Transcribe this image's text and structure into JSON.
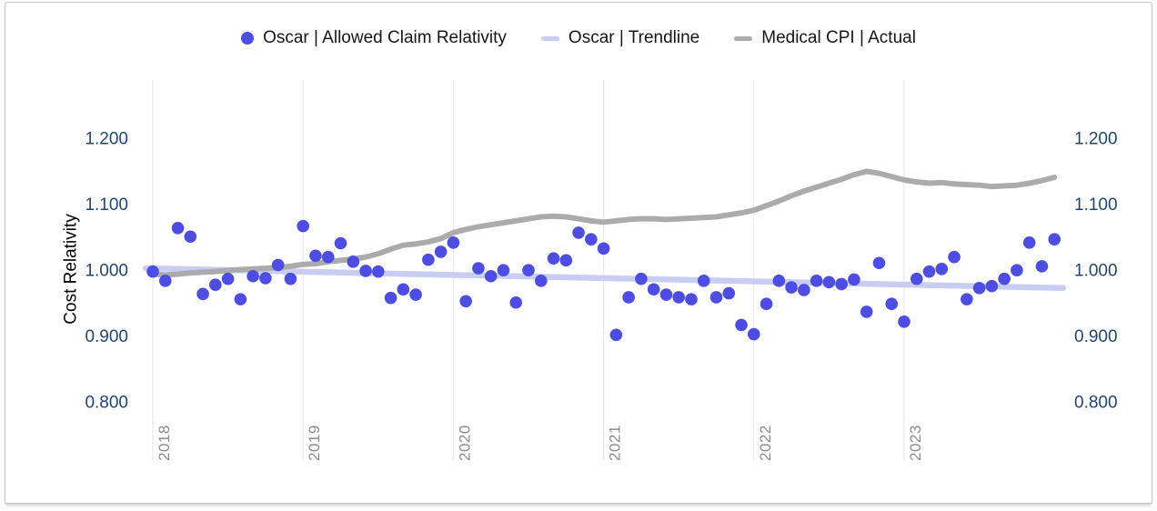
{
  "legend": {
    "position": "top-center",
    "items": [
      {
        "label": "Oscar | Allowed Claim Relativity",
        "marker": "dot",
        "color": "#4d4de2"
      },
      {
        "label": "Oscar | Trendline",
        "marker": "dash",
        "color": "#c9cdf4"
      },
      {
        "label": "Medical CPI | Actual",
        "marker": "dash",
        "color": "#ababab"
      }
    ]
  },
  "y_axis": {
    "title": "Cost Relativity",
    "tick_labels": [
      "1.200",
      "1.100",
      "1.000",
      "0.900",
      "0.800"
    ],
    "tick_values": [
      1.2,
      1.1,
      1.0,
      0.9,
      0.8
    ],
    "label_color": "#24466e",
    "shown_on": "both sides"
  },
  "x_axis": {
    "tick_labels": [
      "2018",
      "2019",
      "2020",
      "2021",
      "2022",
      "2023"
    ],
    "label_color": "#8b8b8b"
  },
  "chart_data": {
    "type": "scatter",
    "title": "",
    "xlabel": "",
    "ylabel": "Cost Relativity",
    "x_unit": "month",
    "x_start": "2018-01",
    "x_end": "2024-01",
    "x_year_ticks": [
      "2018",
      "2019",
      "2020",
      "2021",
      "2022",
      "2023"
    ],
    "ylim": [
      0.75,
      1.25
    ],
    "grid": "vertical-only",
    "legend_position": "top-center",
    "series": [
      {
        "name": "Oscar | Allowed Claim Relativity",
        "type": "scatter",
        "color": "#4d4de2",
        "values": [
          0.997,
          0.983,
          1.063,
          1.05,
          0.963,
          0.977,
          0.986,
          0.955,
          0.99,
          0.987,
          1.007,
          0.986,
          1.066,
          1.021,
          1.019,
          1.04,
          1.012,
          0.998,
          0.997,
          0.957,
          0.97,
          0.962,
          1.015,
          1.027,
          1.041,
          0.952,
          1.002,
          0.99,
          0.999,
          0.95,
          0.999,
          0.983,
          1.017,
          1.014,
          1.056,
          1.046,
          1.032,
          0.901,
          0.958,
          0.986,
          0.97,
          0.962,
          0.958,
          0.955,
          0.983,
          0.958,
          0.964,
          0.916,
          0.902,
          0.948,
          0.983,
          0.973,
          0.969,
          0.983,
          0.981,
          0.978,
          0.985,
          0.936,
          1.01,
          0.948,
          0.921,
          0.986,
          0.997,
          1.001,
          1.019,
          0.955,
          0.972,
          0.975,
          0.986,
          0.999,
          1.041,
          1.005,
          1.046
        ]
      },
      {
        "name": "Oscar | Trendline",
        "type": "line",
        "color": "#c9cdf4",
        "trend": {
          "start": 1.002,
          "end": 0.972
        }
      },
      {
        "name": "Medical CPI | Actual",
        "type": "line",
        "color": "#ababab",
        "values": [
          0.993,
          0.992,
          0.993,
          0.995,
          0.996,
          0.997,
          0.999,
          1.0,
          1.001,
          1.002,
          1.003,
          1.005,
          1.008,
          1.009,
          1.012,
          1.014,
          1.016,
          1.019,
          1.024,
          1.031,
          1.037,
          1.039,
          1.042,
          1.047,
          1.056,
          1.061,
          1.065,
          1.068,
          1.071,
          1.074,
          1.077,
          1.08,
          1.081,
          1.08,
          1.077,
          1.074,
          1.072,
          1.074,
          1.076,
          1.077,
          1.077,
          1.076,
          1.077,
          1.078,
          1.079,
          1.08,
          1.083,
          1.086,
          1.09,
          1.097,
          1.104,
          1.112,
          1.119,
          1.125,
          1.131,
          1.137,
          1.144,
          1.149,
          1.146,
          1.141,
          1.136,
          1.133,
          1.131,
          1.132,
          1.13,
          1.129,
          1.128,
          1.126,
          1.127,
          1.128,
          1.131,
          1.135,
          1.14
        ]
      }
    ]
  }
}
